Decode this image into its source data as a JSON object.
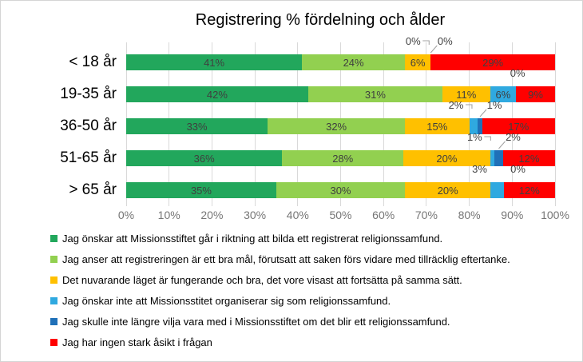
{
  "chart_data": {
    "type": "bar",
    "orientation": "horizontal-stacked",
    "title": "Registrering % fördelning och ålder",
    "categories": [
      "< 18 år",
      "19-35 år",
      "36-50 år",
      "51-65 år",
      "> 65 år"
    ],
    "series": [
      {
        "name": "Jag önskar att Missionsstiftet går i riktning att bilda ett registrerat religionssamfund.",
        "color": "#22A75C",
        "values": [
          41,
          42,
          33,
          36,
          35
        ]
      },
      {
        "name": "Jag anser att registreringen är ett bra mål, förutsatt att saken förs vidare med tillräcklig eftertanke.",
        "color": "#92D050",
        "values": [
          24,
          31,
          32,
          28,
          30
        ]
      },
      {
        "name": "Det nuvarande läget är fungerande och bra, det vore visast att fortsätta på samma sätt.",
        "color": "#FFC000",
        "values": [
          6,
          11,
          15,
          20,
          20
        ]
      },
      {
        "name": "Jag önskar inte att Missionsstitet organiserar sig som religionssamfund.",
        "color": "#2FA9E0",
        "values": [
          0,
          6,
          2,
          1,
          3
        ]
      },
      {
        "name": "Jag skulle inte längre vilja vara med i Missionsstiftet om det blir ett religionssamfund.",
        "color": "#1F70B8",
        "values": [
          0,
          0,
          1,
          2,
          0
        ]
      },
      {
        "name": "Jag har ingen stark åsikt i frågan",
        "color": "#FF0000",
        "values": [
          29,
          9,
          17,
          12,
          12
        ]
      }
    ],
    "x_ticks": [
      "0%",
      "10%",
      "20%",
      "30%",
      "40%",
      "50%",
      "60%",
      "70%",
      "80%",
      "90%",
      "100%"
    ],
    "xlim": [
      0,
      100
    ],
    "grid": "vertical",
    "legend_position": "bottom",
    "label_format": "percent",
    "colors": {
      "gridline": "#D9D9D9",
      "axis_text": "#767676",
      "data_label": "#3F3F3F",
      "leader_line": "#A0A0A0"
    }
  }
}
